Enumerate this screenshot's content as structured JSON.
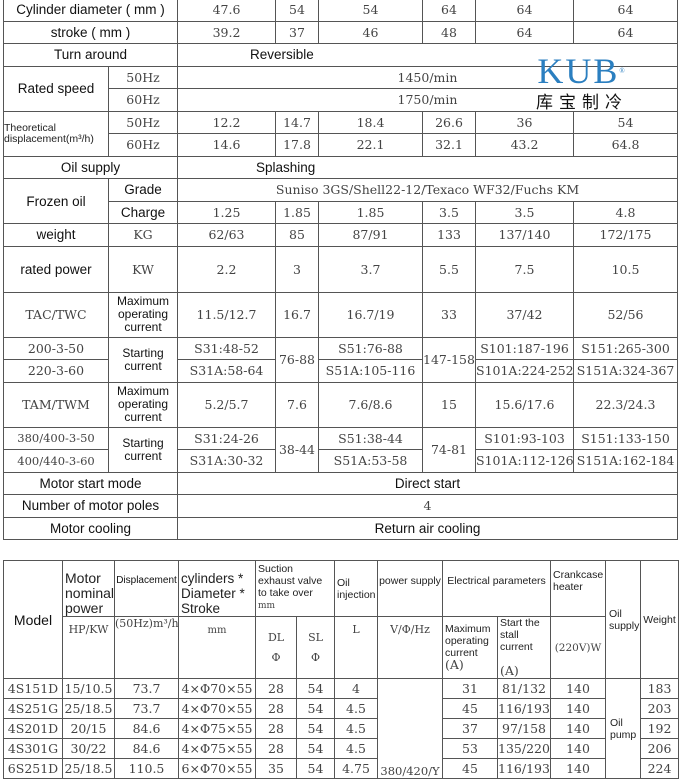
{
  "logo": {
    "brand": "KUB",
    "brand_cn": "库宝制冷",
    "reg": "®",
    "color": "#2b7fc0"
  },
  "spec": {
    "cyl_label": "Cylinder diameter ( mm )",
    "cyl": [
      "47.6",
      "54",
      "54",
      "64",
      "64",
      "64"
    ],
    "stroke_label": "stroke ( mm )",
    "stroke": [
      "39.2",
      "37",
      "46",
      "48",
      "64",
      "64"
    ],
    "turn_label": "Turn around",
    "turn": "Reversible",
    "speed_label": "Rated speed",
    "hz50": "50Hz",
    "hz60": "60Hz",
    "speed50": "1450/min",
    "speed60": "1750/min",
    "disp_label": "Theoretical displacement(m³/h)",
    "disp50": [
      "12.2",
      "14.7",
      "18.4",
      "26.6",
      "36",
      "54"
    ],
    "disp60": [
      "14.6",
      "17.8",
      "22.1",
      "32.1",
      "43.2",
      "64.8"
    ],
    "oil_label": "Oil supply",
    "oil": "Splashing",
    "frozen_label": "Frozen oil",
    "grade_label": "Grade",
    "grade": "Suniso 3GS/Shell22-12/Texaco WF32/Fuchs KM",
    "charge_label": "Charge",
    "charge": [
      "1.25",
      "1.85",
      "1.85",
      "3.5",
      "3.5",
      "4.8"
    ],
    "weight_label": "weight",
    "weight_unit": "KG",
    "weight": [
      "62/63",
      "85",
      "87/91",
      "133",
      "137/140",
      "172/175"
    ],
    "power_label": "rated power",
    "power_unit": "KW",
    "power": [
      "2.2",
      "3",
      "3.7",
      "5.5",
      "7.5",
      "10.5"
    ],
    "tac_label": "TAC/TWC",
    "max_current_label": "Maximum operating current",
    "tac": [
      "11.5/12.7",
      "16.7",
      "16.7/19",
      "33",
      "37/42",
      "52/56"
    ],
    "start_label": "Starting current",
    "v200": "200-3-50",
    "v220": "220-3-60",
    "s200": [
      "S31:48-52",
      "76-88",
      "S51:76-88",
      "147-158",
      "S101:187-196",
      "S151:265-300"
    ],
    "s220": [
      "S31A:58-64",
      "S51A:105-116",
      "S101A:224-252",
      "S151A:324-367"
    ],
    "tam_label": "TAM/TWM",
    "tam": [
      "5.2/5.7",
      "7.6",
      "7.6/8.6",
      "15",
      "15.6/17.6",
      "22.3/24.3"
    ],
    "v380": "380/400-3-50",
    "v400": "400/440-3-60",
    "s380": [
      "S31:24-26",
      "38-44",
      "S51:38-44",
      "74-81",
      "S101:93-103",
      "S151:133-150"
    ],
    "s400": [
      "S31A:30-32",
      "S51A:53-58",
      "S101A:112-126",
      "S151A:162-184"
    ],
    "mode_label": "Motor start mode",
    "mode": "Direct start",
    "poles_label": "Number of motor poles",
    "poles": "4",
    "cool_label": "Motor cooling",
    "cool": "Return air cooling"
  },
  "models": {
    "headers": {
      "model": "Model",
      "power": "Motor nominal power",
      "power_unit": "HP/KW",
      "disp": "Displacement",
      "disp_unit": "(50Hz)m³/h",
      "cyl": "cylinders * Diameter * Stroke",
      "cyl_unit": "mm",
      "valve": "Suction exhaust valve to take over",
      "valve_unit": "mm",
      "dl": "DL",
      "sl": "SL",
      "phi": "Φ",
      "oilinj": "Oil injection",
      "oilinj_unit": "L",
      "supply": "power supply",
      "supply_unit": "V/Φ/Hz",
      "elec": "Electrical parameters",
      "maxcur": "Maximum operating current",
      "stall": "Start the stall current",
      "amp": "(A)",
      "heater": "Crankcase heater",
      "heater_unit": "(220V)W",
      "oil": "Oil supply",
      "weight": "Weight"
    },
    "supply_value": "380/420/Y",
    "oil_value": "Oil pump",
    "rows": [
      [
        "4S151D",
        "15/10.5",
        "73.7",
        "4×Φ70×55",
        "28",
        "54",
        "4",
        "31",
        "81/132",
        "140",
        "183"
      ],
      [
        "4S251G",
        "25/18.5",
        "73.7",
        "4×Φ70×55",
        "28",
        "54",
        "4.5",
        "45",
        "116/193",
        "140",
        "203"
      ],
      [
        "4S201D",
        "20/15",
        "84.6",
        "4×Φ75×55",
        "28",
        "54",
        "4.5",
        "37",
        "97/158",
        "140",
        "192"
      ],
      [
        "4S301G",
        "30/22",
        "84.6",
        "4×Φ75×55",
        "28",
        "54",
        "4.5",
        "53",
        "135/220",
        "140",
        "206"
      ],
      [
        "6S251D",
        "25/18.5",
        "110.5",
        "6×Φ70×55",
        "35",
        "54",
        "4.75",
        "45",
        "116/193",
        "140",
        "224"
      ]
    ]
  }
}
